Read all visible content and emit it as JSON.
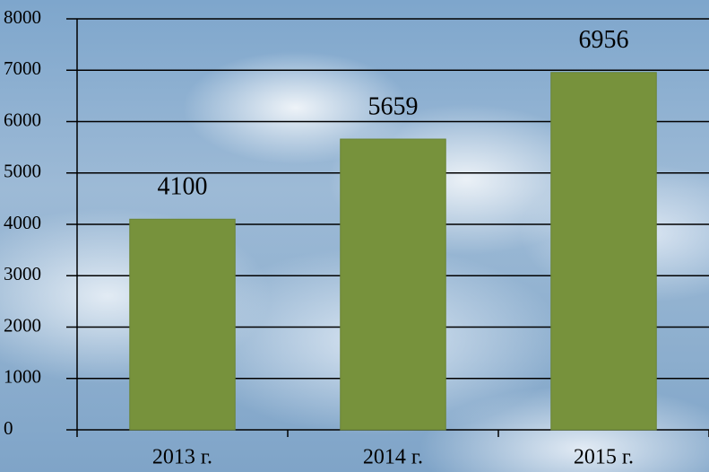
{
  "chart_data": {
    "type": "bar",
    "categories": [
      "2013 г.",
      "2014 г.",
      "2015 г."
    ],
    "values": [
      4100,
      5659,
      6956
    ],
    "color": "#77923c",
    "ylim": [
      0,
      8000
    ],
    "yticks": [
      0,
      1000,
      2000,
      3000,
      4000,
      5000,
      6000,
      7000,
      8000
    ],
    "grid": true
  }
}
